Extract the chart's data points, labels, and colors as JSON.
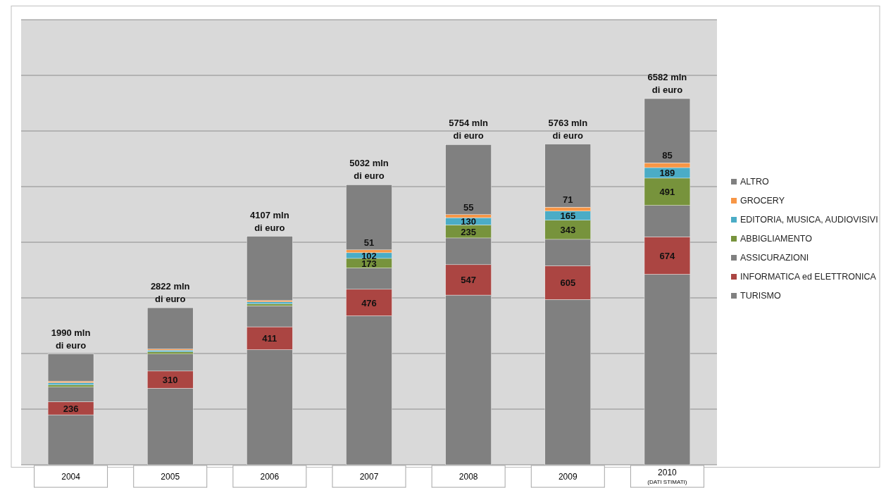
{
  "chart_data": {
    "type": "bar",
    "stacked": true,
    "categories": [
      "2004",
      "2005",
      "2006",
      "2007",
      "2008",
      "2009",
      "2010\n(DATI STIMATI)"
    ],
    "series": [
      {
        "name": "TURISMO",
        "color": "#808080",
        "values": [
          898,
          1375,
          2069,
          2678,
          3050,
          2971,
          3424
        ]
      },
      {
        "name": "INFORMATICA ed ELETTRONICA",
        "color": "#ab4542",
        "values": [
          236,
          310,
          411,
          476,
          547,
          605,
          674
        ],
        "value_labels": [
          "236",
          "310",
          "411",
          "476",
          "547",
          "605",
          "674"
        ]
      },
      {
        "name": "ASSICURAZIONI",
        "color": "#808080",
        "values": [
          263,
          305,
          377,
          383,
          480,
          476,
          564
        ]
      },
      {
        "name": "ABBIGLIAMENTO",
        "color": "#77933c",
        "values": [
          40,
          40,
          37,
          173,
          235,
          343,
          491
        ],
        "value_labels": [
          null,
          null,
          null,
          "173",
          "235",
          "343",
          "491"
        ]
      },
      {
        "name": "EDITORIA, MUSICA, AUDIOVISIVI",
        "color": "#4bacc6",
        "values": [
          40,
          30,
          35,
          102,
          130,
          165,
          189
        ],
        "value_labels": [
          null,
          null,
          null,
          "102",
          "130",
          "165",
          "189"
        ]
      },
      {
        "name": "GROCERY",
        "color": "#f79646",
        "values": [
          25,
          20,
          25,
          51,
          55,
          71,
          85
        ],
        "value_labels": [
          null,
          null,
          null,
          "51",
          "55",
          "71",
          "85"
        ]
      },
      {
        "name": "ALTRO",
        "color": "#808080",
        "values": [
          488,
          742,
          1153,
          1169,
          1257,
          1132,
          1155
        ]
      }
    ],
    "totals": [
      "1990 mln\ndi euro",
      "2822 mln\ndi euro",
      "4107 mln\ndi euro",
      "5032 mln\ndi euro",
      "5754 mln\ndi euro",
      "5763 mln\ndi euro",
      "6582 mln\ndi euro"
    ],
    "ylim": [
      0,
      8000
    ],
    "yticks": [
      {
        "value": 0,
        "label": null
      },
      {
        "value": 1000,
        "label": null
      },
      {
        "value": 2000,
        "label": null
      },
      {
        "value": 3000,
        "label": null
      },
      {
        "value": 4000,
        "label": null
      },
      {
        "value": 5000,
        "label": null
      },
      {
        "value": 6000,
        "label": null
      },
      {
        "value": 7000,
        "label": null
      },
      {
        "value": 8000,
        "label": null
      }
    ],
    "tick_labels": "x",
    "grid": "y",
    "legend": "right"
  }
}
